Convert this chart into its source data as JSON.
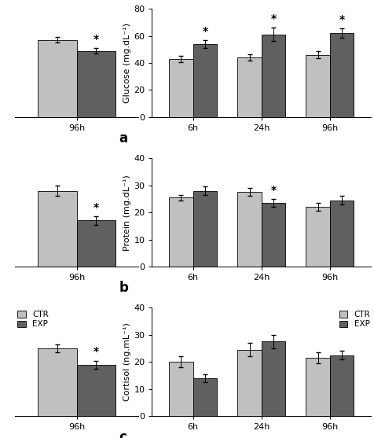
{
  "glucose": {
    "ctr": [
      43,
      44,
      46
    ],
    "exp": [
      54,
      61,
      62
    ],
    "ctr_err": [
      2.5,
      2.5,
      2.5
    ],
    "exp_err": [
      3.0,
      5.0,
      3.5
    ],
    "significant": [
      true,
      true,
      true
    ],
    "ylabel": "Glucose (mg.dL⁻¹)",
    "ylim": [
      0,
      80
    ],
    "yticks": [
      0,
      20,
      40,
      60,
      80
    ],
    "label": "a"
  },
  "protein": {
    "ctr": [
      25.5,
      27.5,
      22
    ],
    "exp": [
      28,
      23.5,
      24.5
    ],
    "ctr_err": [
      1.0,
      1.5,
      1.5
    ],
    "exp_err": [
      1.5,
      1.5,
      1.5
    ],
    "significant": [
      false,
      true,
      false
    ],
    "ylabel": "Protein (mg.dL⁻¹)",
    "ylim": [
      0,
      40
    ],
    "yticks": [
      0,
      10,
      20,
      30,
      40
    ],
    "label": "b"
  },
  "cortisol": {
    "ctr": [
      20,
      24.5,
      21.5
    ],
    "exp": [
      14,
      27.5,
      22.5
    ],
    "ctr_err": [
      2.0,
      2.5,
      2.0
    ],
    "exp_err": [
      1.5,
      2.5,
      1.5
    ],
    "significant": [
      false,
      false,
      false
    ],
    "ylabel": "Cortisol (ng.mL⁻¹)",
    "ylim": [
      0,
      40
    ],
    "yticks": [
      0,
      10,
      20,
      30,
      40
    ],
    "label": "c"
  },
  "glucose_96": {
    "ctr": 57,
    "exp": 49,
    "ctr_err": 2.0,
    "exp_err": 2.0,
    "significant": true,
    "ylim": [
      0,
      80
    ]
  },
  "protein_96": {
    "ctr": 28,
    "exp": 17,
    "ctr_err": 2.0,
    "exp_err": 1.5,
    "significant": true,
    "ylim": [
      0,
      40
    ]
  },
  "cortisol_96": {
    "ctr": 25,
    "exp": 19,
    "ctr_err": 1.5,
    "exp_err": 1.5,
    "significant": true,
    "ylim": [
      0,
      40
    ]
  },
  "xticks": [
    "6h",
    "24h",
    "96h"
  ],
  "color_ctr": "#c0c0c0",
  "color_exp": "#606060",
  "bar_width": 0.35,
  "background": "#ffffff",
  "legend_labels": [
    "CTR",
    "EXP"
  ]
}
